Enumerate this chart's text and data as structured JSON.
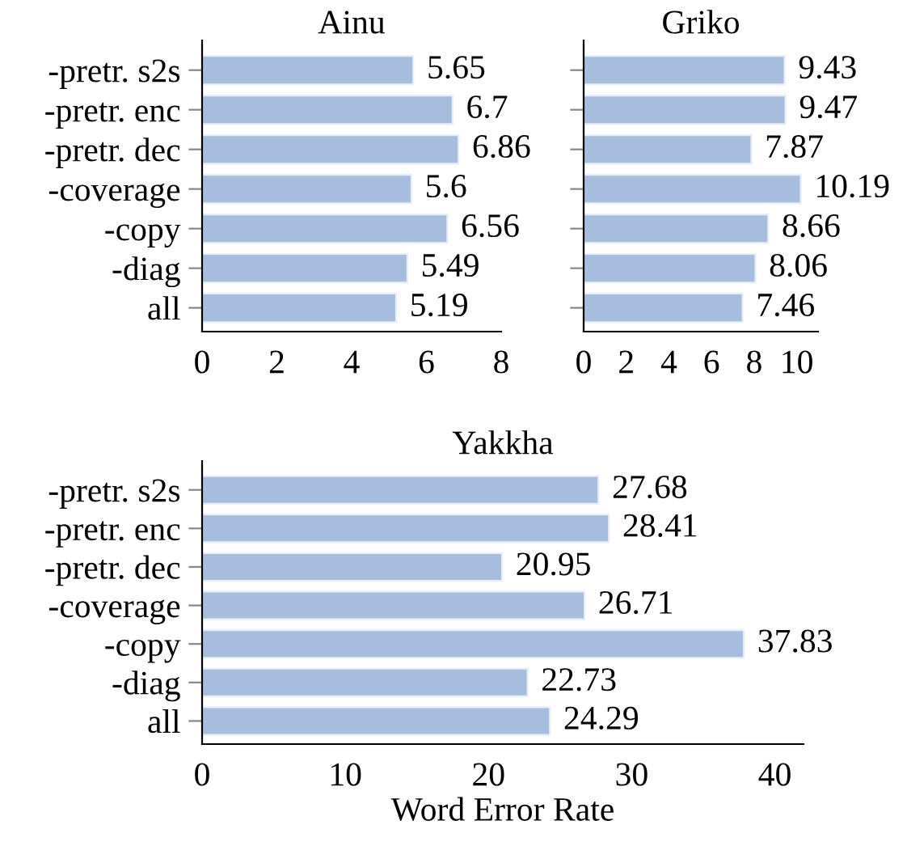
{
  "chart_data": [
    {
      "type": "bar",
      "orientation": "horizontal",
      "title": "Ainu",
      "categories": [
        "-pretr. s2s",
        "-pretr. enc",
        "-pretr. dec",
        "-coverage",
        "-copy",
        "-diag",
        "all"
      ],
      "values": [
        5.65,
        6.7,
        6.86,
        5.6,
        6.56,
        5.49,
        5.19
      ],
      "color": "#a7bddd",
      "data_labels": true,
      "xlim": [
        0,
        8
      ],
      "xticks": [
        0,
        2,
        4,
        6,
        8
      ],
      "grid": false,
      "legend": false
    },
    {
      "type": "bar",
      "orientation": "horizontal",
      "title": "Griko",
      "categories": [
        null,
        null,
        null,
        null,
        null,
        null,
        null
      ],
      "values": [
        9.43,
        9.47,
        7.87,
        10.19,
        8.66,
        8.06,
        7.46
      ],
      "color": "#a7bddd",
      "data_labels": true,
      "xlim": [
        0,
        11
      ],
      "xticks": [
        0,
        2,
        4,
        6,
        8,
        10
      ],
      "grid": false,
      "legend": false
    },
    {
      "type": "bar",
      "orientation": "horizontal",
      "title": "Yakkha",
      "xlabel": "Word Error Rate",
      "categories": [
        "-pretr. s2s",
        "-pretr. enc",
        "-pretr. dec",
        "-coverage",
        "-copy",
        "-diag",
        "all"
      ],
      "values": [
        27.68,
        28.41,
        20.95,
        26.71,
        37.83,
        22.73,
        24.29
      ],
      "color": "#a7bddd",
      "data_labels": true,
      "xlim": [
        0,
        42
      ],
      "xticks": [
        0,
        10,
        20,
        30,
        40
      ],
      "grid": false,
      "legend": false
    }
  ]
}
